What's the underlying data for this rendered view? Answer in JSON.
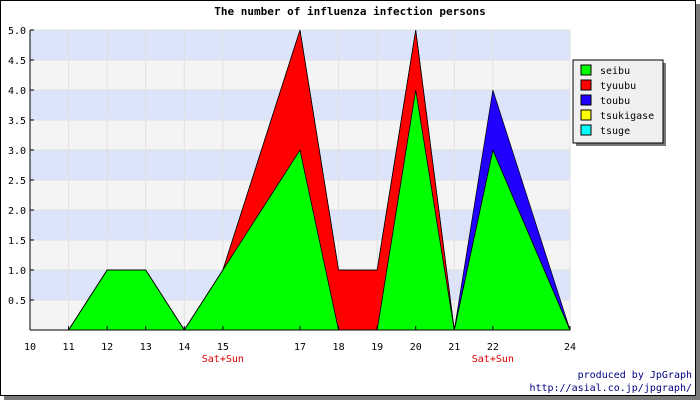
{
  "chart_data": {
    "type": "area",
    "title": "The number of influenza infection persons",
    "xlabel": "",
    "ylabel": "",
    "x": [
      11,
      12,
      13,
      14,
      15,
      17,
      18,
      19,
      20,
      21,
      22,
      24
    ],
    "x_ticks": [
      10,
      11,
      12,
      13,
      14,
      15,
      17,
      18,
      19,
      20,
      21,
      22,
      24
    ],
    "x_tick_labels": [
      "10",
      "11",
      "12",
      "13",
      "14",
      "15",
      "17",
      "18",
      "19",
      "20",
      "21",
      "22",
      "24"
    ],
    "x_sublabels": [
      {
        "x": 15,
        "label": "Sat+Sun"
      },
      {
        "x": 22,
        "label": "Sat+Sun"
      }
    ],
    "ylim": [
      0,
      5.0
    ],
    "y_ticks": [
      0.5,
      1.0,
      1.5,
      2.0,
      2.5,
      3.0,
      3.5,
      4.0,
      4.5,
      5.0
    ],
    "y_tick_labels": [
      "0.5",
      "1.0",
      "1.5",
      "2.0",
      "2.5",
      "3.0",
      "3.5",
      "4.0",
      "4.5",
      "5.0"
    ],
    "stacked": true,
    "series": [
      {
        "name": "seibu",
        "color": "#00ff00",
        "values": [
          0,
          1,
          1,
          0,
          1,
          3,
          0,
          0,
          4,
          0,
          3,
          0
        ]
      },
      {
        "name": "tyuubu",
        "color": "#ff0000",
        "values": [
          0,
          0,
          0,
          0,
          0,
          2,
          1,
          1,
          1,
          0,
          0,
          0
        ]
      },
      {
        "name": "toubu",
        "color": "#2200ff",
        "values": [
          0,
          0,
          0,
          0,
          0,
          0,
          0,
          0,
          0,
          0,
          1,
          0
        ]
      },
      {
        "name": "tsukigase",
        "color": "#ffff00",
        "values": [
          0,
          0,
          0,
          0,
          0,
          0,
          0,
          0,
          0,
          0,
          0,
          0
        ]
      },
      {
        "name": "tsuge",
        "color": "#00ffff",
        "values": [
          0,
          0,
          0,
          0,
          0,
          0,
          0,
          0,
          0,
          0,
          0,
          0
        ]
      }
    ],
    "grid": true,
    "band_colors": [
      "#f4f4f4",
      "#dbe4fb"
    ],
    "legend_position": "right"
  },
  "credits": {
    "line1": "produced by JpGraph",
    "line2": "http://asial.co.jp/jpgraph/"
  }
}
